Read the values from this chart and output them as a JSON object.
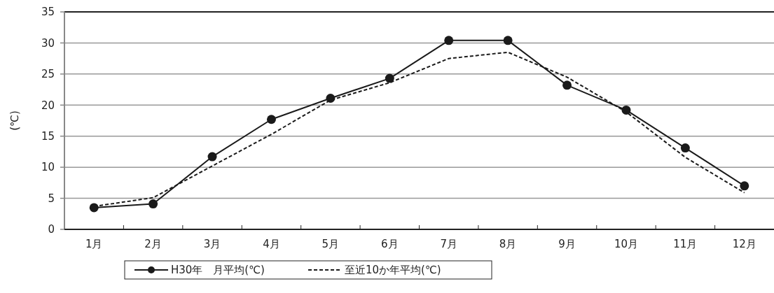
{
  "chart_data": {
    "type": "line",
    "ylabel": "(℃)",
    "categories": [
      "1月",
      "2月",
      "3月",
      "4月",
      "5月",
      "6月",
      "7月",
      "8月",
      "9月",
      "10月",
      "11月",
      "12月"
    ],
    "series": [
      {
        "name": "H30年　月平均(℃)",
        "color": "#1a1a1a",
        "values": [
          3.5,
          4.1,
          11.7,
          17.7,
          21.1,
          24.3,
          30.4,
          30.4,
          23.2,
          19.2,
          13.1,
          7.0
        ],
        "marker": "circle",
        "line_style": "solid"
      },
      {
        "name": "至近10か年平均(℃)",
        "color": "#1a1a1a",
        "values": [
          3.7,
          5.1,
          10.2,
          15.3,
          20.8,
          23.6,
          27.5,
          28.5,
          24.5,
          18.9,
          11.6,
          5.9
        ],
        "marker": "none",
        "line_style": "dashed"
      }
    ],
    "ylim": [
      0,
      35
    ],
    "yticks": [
      0,
      5,
      10,
      15,
      20,
      25,
      30,
      35
    ],
    "grid": "y",
    "legend": "bottom"
  }
}
